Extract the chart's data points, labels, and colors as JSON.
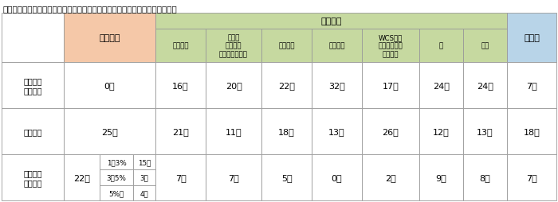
{
  "title": "『令和４年産米等の作付意向（前年産実績との比較、令和４年１月末時点）』",
  "shokumai_header": "主食用米",
  "senryaku_header": "戦略作物",
  "bichiku_header": "備蓄米",
  "sub_headers": [
    "加工用米",
    "新市場\n開拓用米\n（輸出用米等）",
    "米粉用米",
    "飼料用米",
    "WCS用稲\n（稲発酵粗飼\n料用稲）",
    "麦",
    "大豆"
  ],
  "row_labels": [
    "前年より\n増加傾向",
    "前年並み",
    "前年より\n減少傾向"
  ],
  "shokumai_vals": [
    "0県",
    "25県",
    "22県"
  ],
  "sub_vals": [
    [
      "1～3%",
      "15県"
    ],
    [
      "3～5%",
      "3県"
    ],
    [
      "5%超",
      "4県"
    ]
  ],
  "data": [
    [
      "16県",
      "20県",
      "22県",
      "32県",
      "17県",
      "24県",
      "24県",
      "7県"
    ],
    [
      "21県",
      "11県",
      "18県",
      "13県",
      "26県",
      "12県",
      "13県",
      "18県"
    ],
    [
      "7県",
      "7県",
      "5県",
      "0県",
      "2県",
      "9県",
      "8県",
      "7県"
    ]
  ],
  "colors": {
    "shokumai_bg": "#f5c8a8",
    "senryaku_bg": "#c6d9a0",
    "bichiku_bg": "#b8d4e8",
    "white": "#ffffff",
    "border": "#999999"
  },
  "figsize": [
    7.0,
    2.55
  ],
  "dpi": 100
}
